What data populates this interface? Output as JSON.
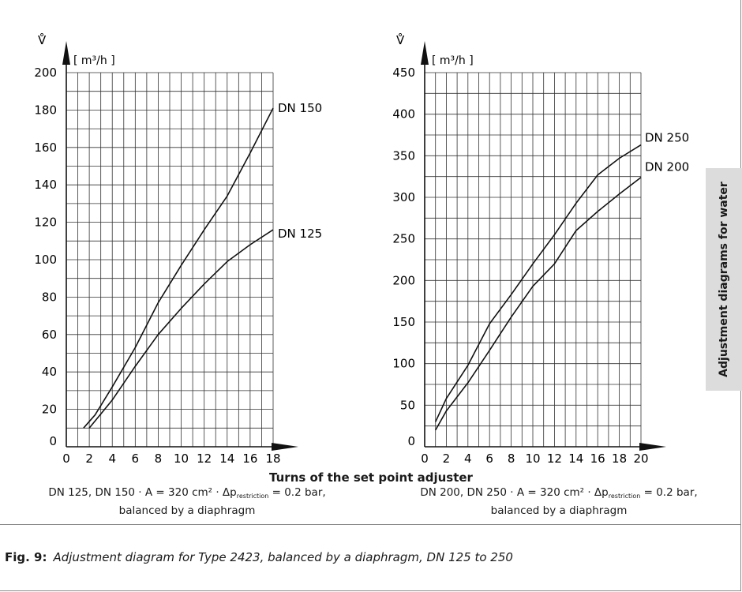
{
  "chart_data": [
    {
      "type": "line",
      "y_symbol": "V̊",
      "y_unit": "[ m³/h ]",
      "xlim": [
        0,
        18
      ],
      "ylim": [
        0,
        200
      ],
      "x_ticks": [
        "0",
        "2",
        "4",
        "6",
        "8",
        "10",
        "12",
        "14",
        "16",
        "18"
      ],
      "y_ticks": [
        "0",
        "20",
        "40",
        "60",
        "80",
        "100",
        "120",
        "140",
        "160",
        "180",
        "200"
      ],
      "grid": true,
      "series": [
        {
          "name": "DN 150",
          "x": [
            1.5,
            2.5,
            4,
            6,
            8,
            10,
            12,
            14,
            16,
            18
          ],
          "values": [
            10,
            17,
            32,
            53,
            77,
            97,
            116,
            134,
            157,
            181
          ]
        },
        {
          "name": "DN 125",
          "x": [
            2,
            4,
            6,
            8,
            10,
            12,
            14,
            16,
            18
          ],
          "values": [
            10,
            25,
            43,
            60,
            74,
            87,
            99,
            108,
            116
          ]
        }
      ]
    },
    {
      "type": "line",
      "y_symbol": "V̊",
      "y_unit": "[ m³/h ]",
      "xlim": [
        0,
        20
      ],
      "ylim": [
        0,
        450
      ],
      "x_ticks": [
        "0",
        "2",
        "4",
        "6",
        "8",
        "10",
        "12",
        "14",
        "16",
        "18",
        "20"
      ],
      "y_ticks": [
        "0",
        "50",
        "100",
        "150",
        "200",
        "250",
        "300",
        "350",
        "400",
        "450"
      ],
      "grid": true,
      "series": [
        {
          "name": "DN 250",
          "x": [
            1,
            2,
            4,
            6,
            8,
            10,
            12,
            14,
            16,
            18,
            20
          ],
          "values": [
            30,
            58,
            98,
            148,
            183,
            220,
            255,
            293,
            327,
            347,
            363
          ]
        },
        {
          "name": "DN 200",
          "x": [
            1,
            2,
            4,
            6,
            8,
            10,
            12,
            14,
            16,
            18,
            20
          ],
          "values": [
            20,
            43,
            77,
            116,
            156,
            193,
            220,
            260,
            283,
            304,
            324
          ]
        }
      ]
    }
  ],
  "shared_xlabel": "Turns of the set point adjuster",
  "captions": {
    "left": {
      "pre": "DN 125, DN 150 · A = 320 cm² · Δp",
      "sub": "restriction",
      "post": " = 0.2 bar,",
      "line2": "balanced by a diaphragm"
    },
    "right": {
      "pre": "DN 200, DN 250 · A = 320 cm² · Δp",
      "sub": "restriction",
      "post": " = 0.2 bar,",
      "line2": "balanced by a diaphragm"
    }
  },
  "figure": {
    "label": "Fig. 9:",
    "text": "Adjustment diagram for Type 2423, balanced by a diaphragm, DN 125 to 250"
  },
  "side_tab": "Adjustment diagrams for water"
}
